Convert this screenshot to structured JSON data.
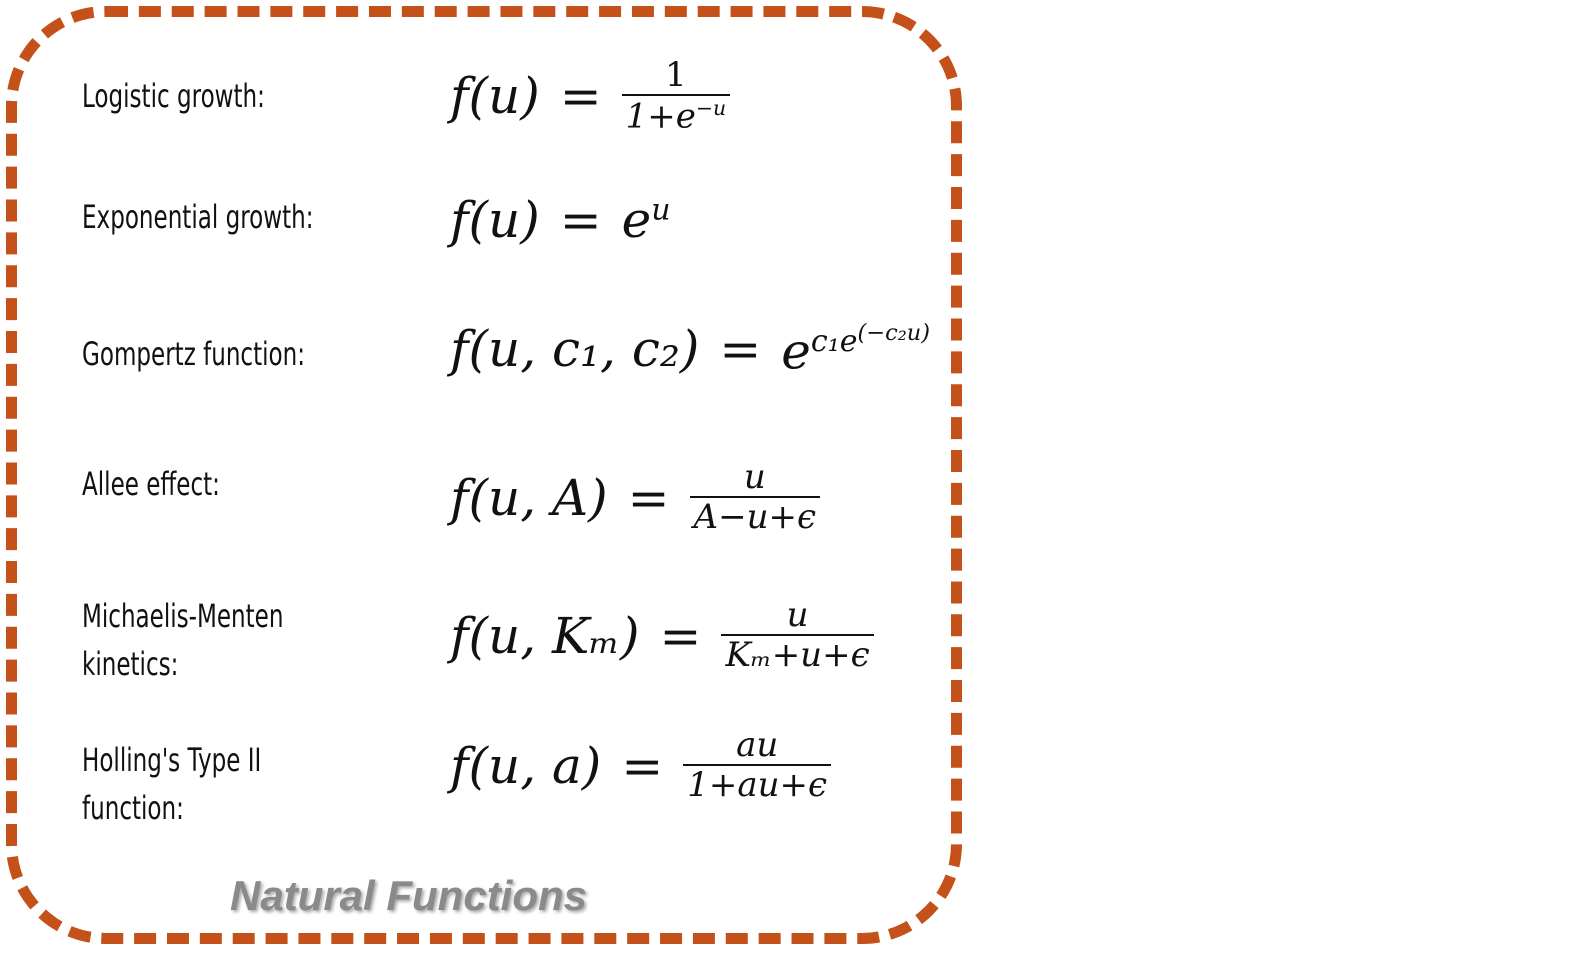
{
  "rows": [
    {
      "label": "Logistic growth:",
      "lhs": "f(u)",
      "rel": "=",
      "num": "1",
      "den_base": "1+e",
      "den_sup": "−u"
    },
    {
      "label": "Exponential growth:",
      "lhs": "f(u)",
      "rel": "=",
      "rhs_base": "e",
      "rhs_sup": "u"
    },
    {
      "label": "Gompertz function:",
      "lhs": "f(u, c₁, c₂)",
      "rel": "=",
      "rhs_base": "e",
      "rhs_sup1": "c₁e",
      "rhs_sup2": "(−c₂u)"
    },
    {
      "label": "Allee effect:",
      "lhs": "f(u, A)",
      "rel": "=",
      "num": "u",
      "den": "A−u+ϵ"
    },
    {
      "label_line1": "Michaelis-Menten",
      "label_line2": "kinetics:",
      "lhs": "f(u, Kₘ)",
      "rel": "=",
      "num": "u",
      "den": "Kₘ+u+ϵ"
    },
    {
      "label_line1": "Holling's Type II",
      "label_line2": "function:",
      "lhs": "f(u, a)",
      "rel": "=",
      "num": "au",
      "den": "1+au+ϵ"
    }
  ],
  "caption": "Natural Functions",
  "colors": {
    "frame": "#c4501a",
    "caption": "#8a8a8a",
    "text": "#111111"
  }
}
